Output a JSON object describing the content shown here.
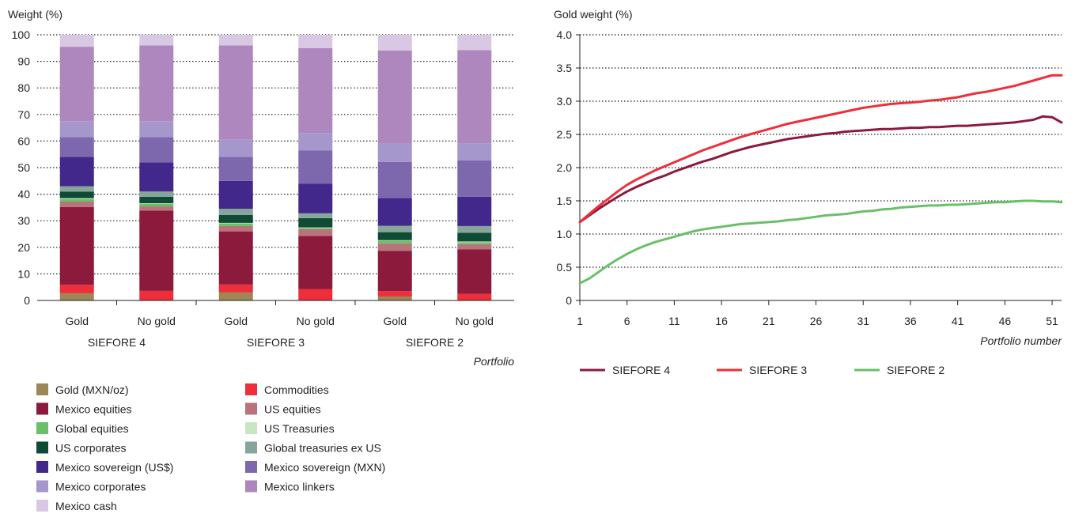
{
  "chart_data": [
    {
      "type": "bar",
      "stacked": true,
      "ylabel": "Weight (%)",
      "xlabel": "Portfolio",
      "ylim": [
        0,
        100
      ],
      "yticks": [
        0,
        10,
        20,
        30,
        40,
        50,
        60,
        70,
        80,
        90,
        100
      ],
      "grid": "dotted horizontal",
      "categories": [
        "Gold",
        "No gold",
        "Gold",
        "No gold",
        "Gold",
        "No gold"
      ],
      "groups": [
        "SIEFORE 4",
        "SIEFORE 3",
        "SIEFORE 2"
      ],
      "series": [
        {
          "name": "Gold (MXN/oz)",
          "color": "#9b8856",
          "values": [
            2.7,
            0,
            3.0,
            0,
            1.5,
            0
          ]
        },
        {
          "name": "Commodities",
          "color": "#ee2e3b",
          "values": [
            3.2,
            3.6,
            3.0,
            4.3,
            2.0,
            2.5
          ]
        },
        {
          "name": "Mexico equities",
          "color": "#8c1a3c",
          "values": [
            29.3,
            30.2,
            20.0,
            20.0,
            15.2,
            16.7
          ]
        },
        {
          "name": "US equities",
          "color": "#b8737b",
          "values": [
            2.0,
            1.6,
            2.0,
            2.5,
            2.8,
            2.0
          ]
        },
        {
          "name": "Global equities",
          "color": "#6abf69",
          "values": [
            1.0,
            1.0,
            1.0,
            0.5,
            1.0,
            0.7
          ]
        },
        {
          "name": "US Treasuries",
          "color": "#c9e6c3",
          "values": [
            0.3,
            0.2,
            0.2,
            0.2,
            0.2,
            0.3
          ]
        },
        {
          "name": "US corporates",
          "color": "#0f4a35",
          "values": [
            2.5,
            2.4,
            3.0,
            3.5,
            3.0,
            3.3
          ]
        },
        {
          "name": "Global treasuries ex US",
          "color": "#87a59a",
          "values": [
            2.0,
            2.0,
            2.3,
            1.8,
            2.4,
            2.5
          ]
        },
        {
          "name": "Mexico sovereign (US$)",
          "color": "#43288b",
          "values": [
            11.0,
            11.0,
            10.5,
            11.2,
            10.5,
            11.0
          ]
        },
        {
          "name": "Mexico sovereign (MXN)",
          "color": "#7d68ae",
          "values": [
            7.5,
            9.5,
            9.0,
            12.5,
            13.5,
            13.7
          ]
        },
        {
          "name": "Mexico corporates",
          "color": "#a597cb",
          "values": [
            6.0,
            6.0,
            6.5,
            6.5,
            7.0,
            6.5
          ]
        },
        {
          "name": "Mexico linkers",
          "color": "#ad87bd",
          "values": [
            28.0,
            28.5,
            35.5,
            32.0,
            35.0,
            35.0
          ]
        },
        {
          "name": "Mexico cash",
          "color": "#d9c8e3",
          "values": [
            4.5,
            4.0,
            4.0,
            5.0,
            5.9,
            5.8
          ]
        }
      ]
    },
    {
      "type": "line",
      "ylabel": "Gold weight (%)",
      "xlabel": "Portfolio number",
      "ylim": [
        0,
        4
      ],
      "yticks": [
        0,
        0.5,
        1.0,
        1.5,
        2.0,
        2.5,
        3.0,
        3.5,
        4.0
      ],
      "ytick_labels": [
        "0",
        "0.5",
        "1.0",
        "1.5",
        "2.0",
        "2.5",
        "3.0",
        "3.5",
        "4.0"
      ],
      "xlim": [
        1,
        52
      ],
      "xticks": [
        1,
        6,
        11,
        16,
        21,
        26,
        31,
        36,
        41,
        46,
        51
      ],
      "grid": "dotted horizontal",
      "legend": "bottom",
      "x": [
        1,
        2,
        3,
        4,
        5,
        6,
        7,
        8,
        9,
        10,
        11,
        12,
        13,
        14,
        15,
        16,
        17,
        18,
        19,
        20,
        21,
        22,
        23,
        24,
        25,
        26,
        27,
        28,
        29,
        30,
        31,
        32,
        33,
        34,
        35,
        36,
        37,
        38,
        39,
        40,
        41,
        42,
        43,
        44,
        45,
        46,
        47,
        48,
        49,
        50,
        51,
        52
      ],
      "series": [
        {
          "name": "SIEFORE 4",
          "color": "#8c1a3c",
          "values": [
            1.18,
            1.28,
            1.38,
            1.47,
            1.56,
            1.64,
            1.71,
            1.77,
            1.83,
            1.88,
            1.94,
            1.99,
            2.04,
            2.09,
            2.13,
            2.18,
            2.23,
            2.27,
            2.31,
            2.34,
            2.37,
            2.4,
            2.43,
            2.45,
            2.47,
            2.49,
            2.51,
            2.52,
            2.54,
            2.55,
            2.56,
            2.57,
            2.58,
            2.58,
            2.59,
            2.6,
            2.6,
            2.61,
            2.61,
            2.62,
            2.63,
            2.63,
            2.64,
            2.65,
            2.66,
            2.67,
            2.68,
            2.7,
            2.72,
            2.77,
            2.76,
            2.68
          ]
        },
        {
          "name": "SIEFORE 3",
          "color": "#ee2e3b",
          "values": [
            1.18,
            1.3,
            1.42,
            1.53,
            1.64,
            1.74,
            1.82,
            1.89,
            1.96,
            2.02,
            2.08,
            2.14,
            2.2,
            2.26,
            2.31,
            2.36,
            2.41,
            2.46,
            2.5,
            2.54,
            2.58,
            2.62,
            2.66,
            2.69,
            2.72,
            2.75,
            2.78,
            2.81,
            2.84,
            2.87,
            2.9,
            2.92,
            2.94,
            2.96,
            2.97,
            2.98,
            2.99,
            3.01,
            3.02,
            3.04,
            3.06,
            3.09,
            3.12,
            3.14,
            3.17,
            3.2,
            3.23,
            3.27,
            3.31,
            3.35,
            3.39,
            3.39
          ]
        },
        {
          "name": "SIEFORE 2",
          "color": "#6abf69",
          "values": [
            0.26,
            0.33,
            0.43,
            0.53,
            0.62,
            0.7,
            0.77,
            0.83,
            0.88,
            0.92,
            0.96,
            1.0,
            1.04,
            1.07,
            1.09,
            1.11,
            1.13,
            1.15,
            1.16,
            1.17,
            1.18,
            1.19,
            1.21,
            1.22,
            1.24,
            1.26,
            1.28,
            1.29,
            1.3,
            1.32,
            1.34,
            1.35,
            1.37,
            1.38,
            1.4,
            1.41,
            1.42,
            1.43,
            1.43,
            1.44,
            1.44,
            1.45,
            1.46,
            1.47,
            1.48,
            1.48,
            1.49,
            1.5,
            1.5,
            1.49,
            1.49,
            1.48
          ]
        }
      ]
    }
  ]
}
